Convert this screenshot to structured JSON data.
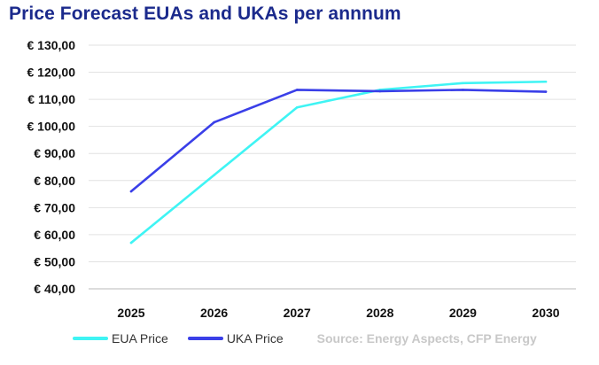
{
  "chart_data": {
    "type": "line",
    "title": "Price Forecast EUAs and UKAs per annnum",
    "categories": [
      "2025",
      "2026",
      "2027",
      "2028",
      "2029",
      "2030"
    ],
    "series": [
      {
        "name": "EUA Price",
        "color": "#3ff4f4",
        "values": [
          57,
          82,
          107,
          113.5,
          116,
          116.5
        ]
      },
      {
        "name": "UKA Price",
        "color": "#3a3fe8",
        "values": [
          76,
          101.5,
          113.5,
          113,
          113.5,
          112.8
        ]
      }
    ],
    "ylim": [
      40,
      130
    ],
    "yticks": [
      "€ 40,00",
      "€ 50,00",
      "€ 60,00",
      "€ 70,00",
      "€ 80,00",
      "€ 90,00",
      "€ 100,00",
      "€ 110,00",
      "€ 120,00",
      "€ 130,00"
    ],
    "xlabel": "",
    "ylabel": "",
    "grid": true,
    "legend": "bottom-left",
    "source": "Source: Energy Aspects, CFP Energy"
  }
}
